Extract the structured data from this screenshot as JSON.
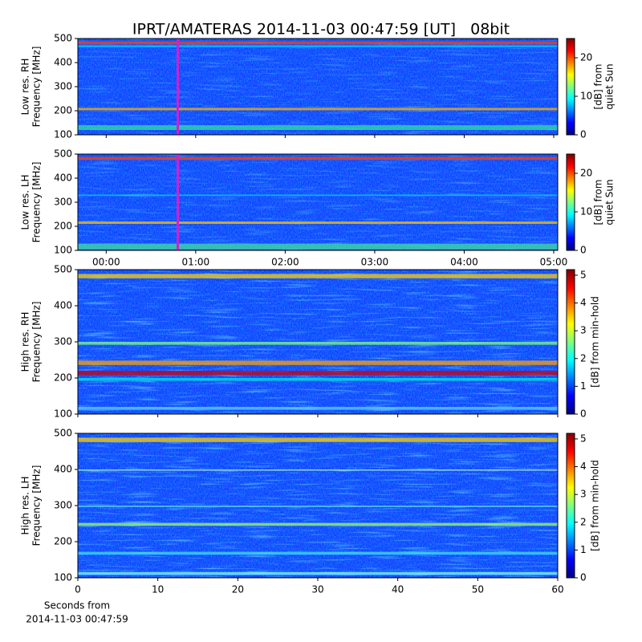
{
  "title": "IPRT/AMATERAS 2014-11-03 00:47:59 [UT]   08bit",
  "chart_data": [
    {
      "type": "heatmap",
      "ylabel": [
        "Low res. RH",
        "Frequency [MHz]"
      ],
      "xlim": [
        -19,
        302.7
      ],
      "ylim": [
        100,
        500
      ],
      "yticks": [
        100,
        200,
        300,
        400,
        500
      ],
      "highlight_x": 48,
      "highlight_color": "#d020d0",
      "colorbar": {
        "label": [
          "[dB] from",
          "quiet Sun"
        ],
        "lim": [
          0,
          25
        ],
        "ticks": [
          0,
          10,
          20
        ]
      }
    },
    {
      "type": "heatmap",
      "ylabel": [
        "Low res. LH",
        "Frequency [MHz]"
      ],
      "xlim": [
        -19,
        302.7
      ],
      "ylim": [
        100,
        500
      ],
      "yticks": [
        100,
        200,
        300,
        400,
        500
      ],
      "xticks": [
        {
          "value": 0,
          "label": "00:00"
        },
        {
          "value": 60,
          "label": "01:00"
        },
        {
          "value": 120,
          "label": "02:00"
        },
        {
          "value": 180,
          "label": "03:00"
        },
        {
          "value": 240,
          "label": "04:00"
        },
        {
          "value": 300,
          "label": "05:00"
        }
      ],
      "highlight_x": 48,
      "highlight_color": "#d020d0",
      "colorbar": {
        "label": [
          "[dB] from",
          "quiet Sun"
        ],
        "lim": [
          0,
          25
        ],
        "ticks": [
          0,
          10,
          20
        ]
      }
    },
    {
      "type": "heatmap",
      "ylabel": [
        "High res. RH",
        "Frequency [MHz]"
      ],
      "xlim": [
        0,
        60
      ],
      "ylim": [
        100,
        500
      ],
      "yticks": [
        100,
        200,
        300,
        400,
        500
      ],
      "colorbar": {
        "label": [
          "[dB] from min-hold"
        ],
        "lim": [
          0,
          5.2
        ],
        "ticks": [
          0,
          1,
          2,
          3,
          4,
          5
        ]
      }
    },
    {
      "type": "heatmap",
      "ylabel": [
        "High res. LH",
        "Frequency [MHz]"
      ],
      "xlim": [
        0,
        60
      ],
      "ylim": [
        100,
        500
      ],
      "yticks": [
        100,
        200,
        300,
        400,
        500
      ],
      "xticks": [
        0,
        10,
        20,
        30,
        40,
        50,
        60
      ],
      "xlabel": [
        "Seconds from",
        "2014-11-03 00:47:59"
      ],
      "colorbar": {
        "label": [
          "[dB] from min-hold"
        ],
        "lim": [
          0,
          5.2
        ],
        "ticks": [
          0,
          1,
          2,
          3,
          4,
          5
        ]
      }
    }
  ]
}
